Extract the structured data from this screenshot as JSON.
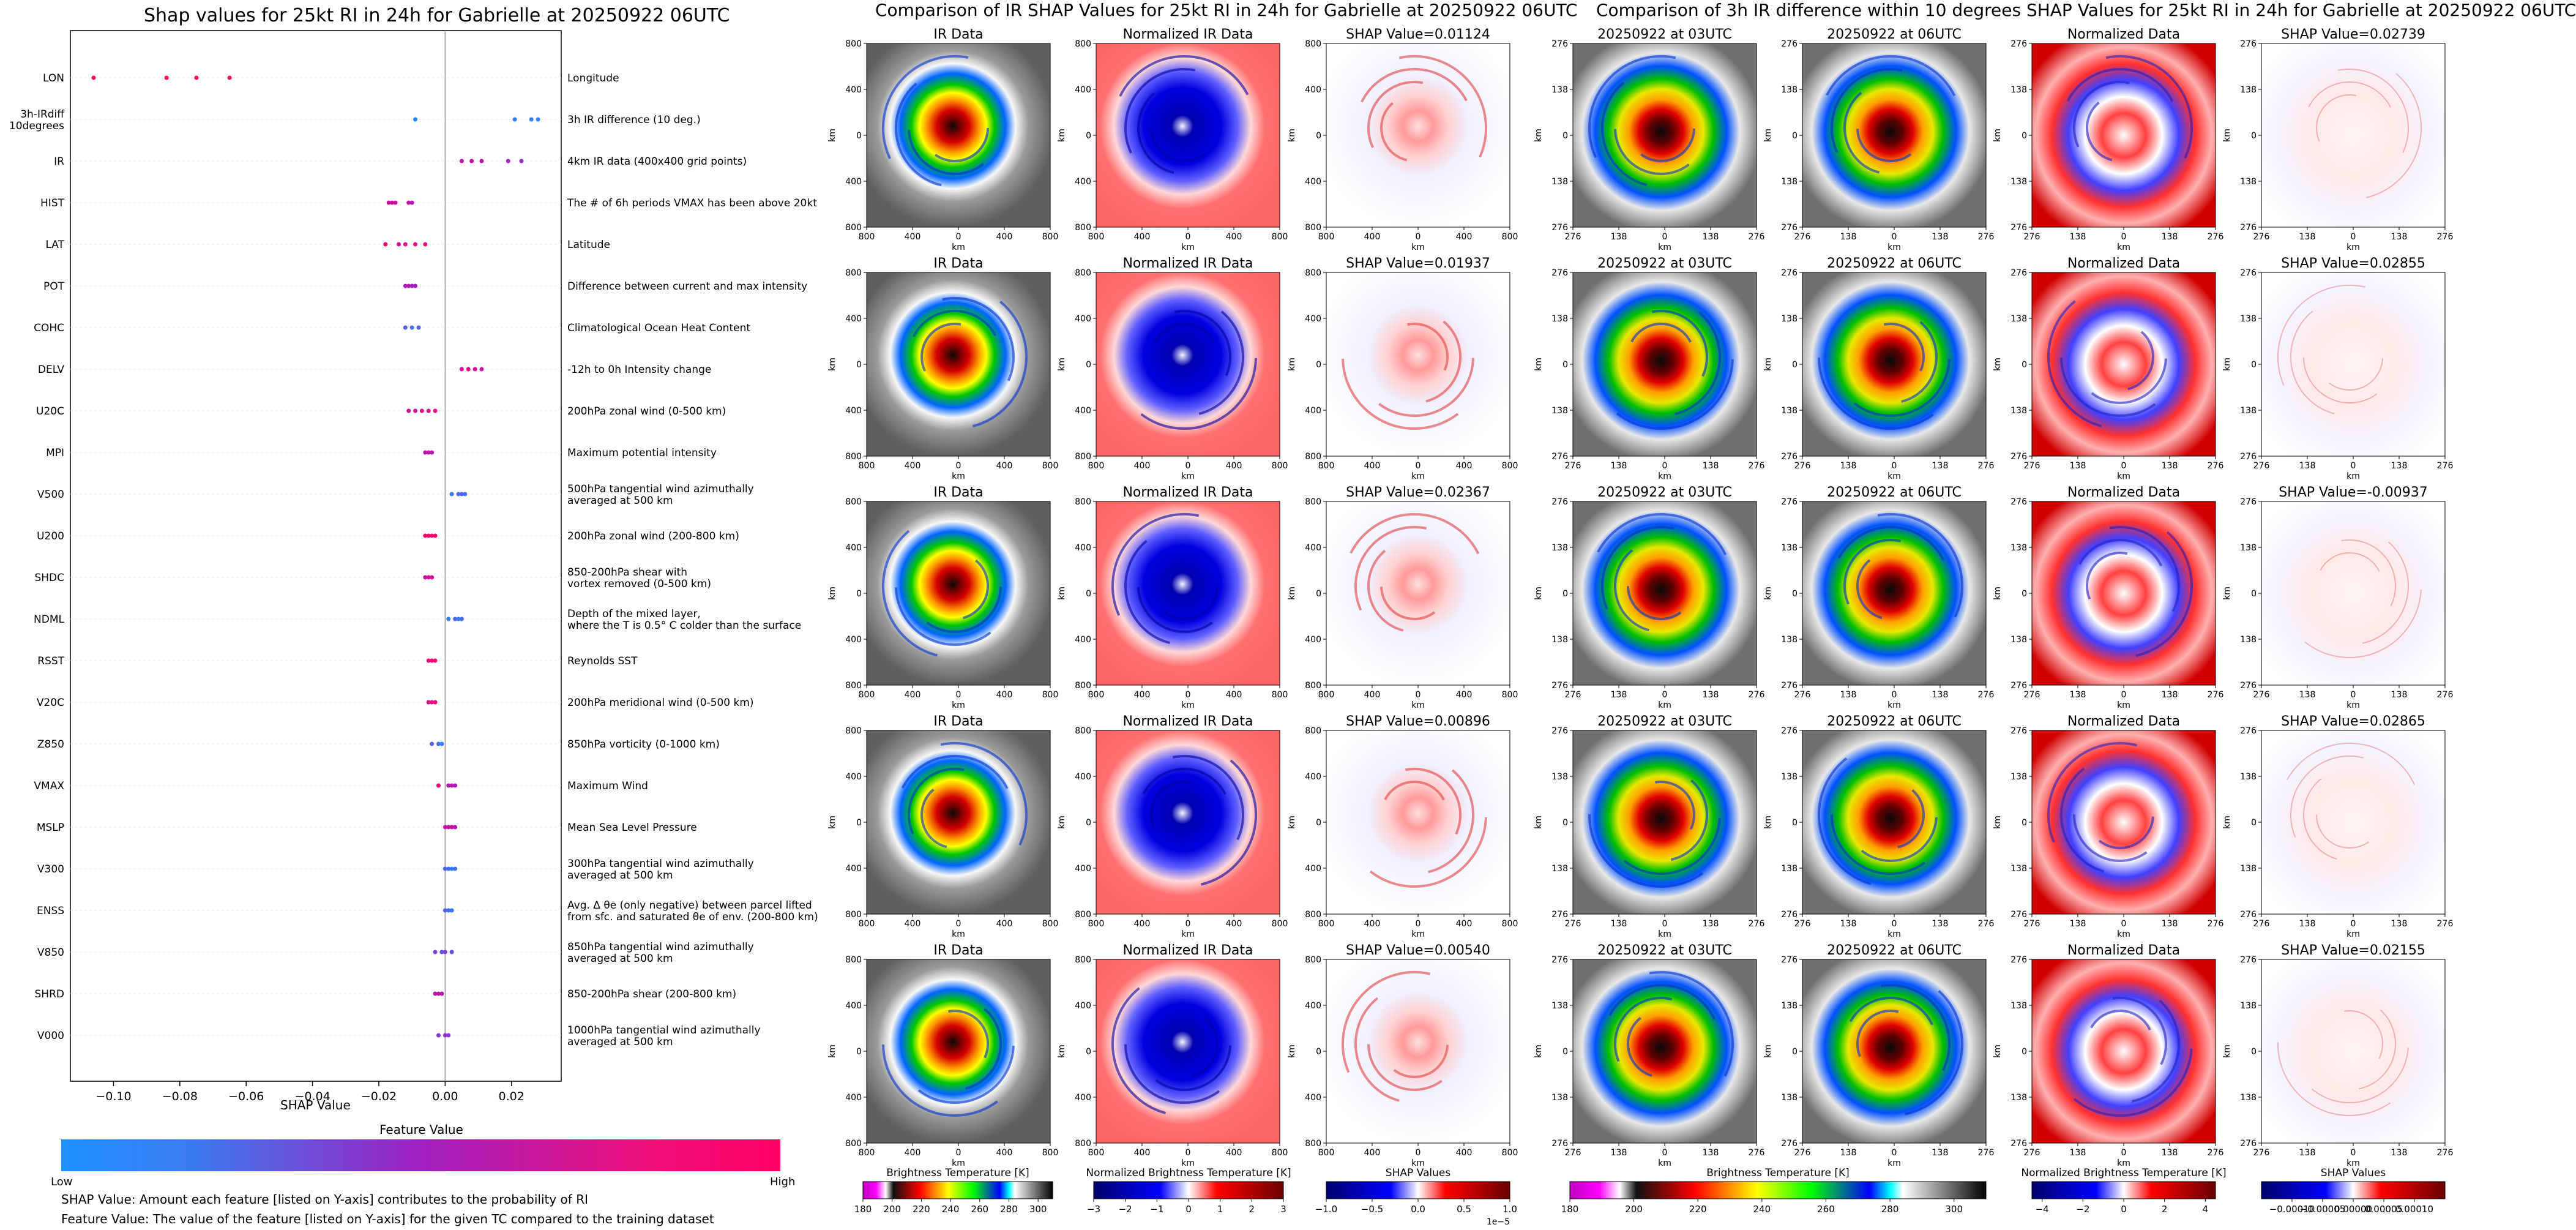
{
  "colors": {
    "low": "#1e90ff",
    "mid": "#a020c0",
    "high": "#ff0066"
  },
  "left": {
    "title": "Shap values for 25kt RI in 24h for Gabrielle at 20250922 06UTC",
    "xlabel": "SHAP Value",
    "colorbar_title": "Feature Value",
    "colorbar_low": "Low",
    "colorbar_high": "High",
    "note1": "SHAP Value: Amount each feature [listed on Y-axis] contributes to the probability of RI",
    "note2": "Feature Value: The value of the feature [listed on Y-axis] for the given TC compared to the training dataset"
  },
  "chart_data": [
    {
      "type": "scatter",
      "title": "Shap values for 25kt RI in 24h for Gabrielle at 20250922 06UTC",
      "xlabel": "SHAP Value",
      "ylabel": "",
      "xlim": [
        -0.113,
        0.035
      ],
      "xticks": [
        "−0.10",
        "−0.08",
        "−0.06",
        "−0.04",
        "−0.02",
        "0.00",
        "0.02"
      ],
      "xtick_values": [
        -0.1,
        -0.08,
        -0.06,
        -0.04,
        -0.02,
        0.0,
        0.02
      ],
      "features": [
        {
          "name": "LON",
          "desc": "Longitude",
          "points": [
            [
              -0.106,
              1.0
            ],
            [
              -0.084,
              1.0
            ],
            [
              -0.075,
              1.0
            ],
            [
              -0.065,
              1.0
            ]
          ]
        },
        {
          "name": "3h-IRdiff\n10degrees",
          "desc": "3h IR difference (10 deg.)",
          "points": [
            [
              -0.009,
              0.05
            ],
            [
              0.021,
              0.1
            ],
            [
              0.026,
              0.1
            ],
            [
              0.028,
              0.05
            ]
          ]
        },
        {
          "name": "IR",
          "desc": "4km IR data (400x400 grid points)",
          "points": [
            [
              0.005,
              0.6
            ],
            [
              0.008,
              0.7
            ],
            [
              0.011,
              0.6
            ],
            [
              0.019,
              0.5
            ],
            [
              0.023,
              0.45
            ]
          ]
        },
        {
          "name": "HIST",
          "desc": "The # of 6h periods VMAX has been above 20kt",
          "points": [
            [
              -0.017,
              0.7
            ],
            [
              -0.016,
              0.75
            ],
            [
              -0.015,
              0.7
            ],
            [
              -0.011,
              0.65
            ],
            [
              -0.01,
              0.6
            ]
          ]
        },
        {
          "name": "LAT",
          "desc": "Latitude",
          "points": [
            [
              -0.018,
              0.9
            ],
            [
              -0.014,
              0.75
            ],
            [
              -0.012,
              0.8
            ],
            [
              -0.009,
              0.85
            ],
            [
              -0.006,
              0.9
            ]
          ]
        },
        {
          "name": "POT",
          "desc": "Difference between current and max intensity",
          "points": [
            [
              -0.012,
              0.55
            ],
            [
              -0.011,
              0.6
            ],
            [
              -0.01,
              0.5
            ],
            [
              -0.009,
              0.5
            ]
          ]
        },
        {
          "name": "COHC",
          "desc": "Climatological Ocean Heat Content",
          "points": [
            [
              -0.012,
              0.2
            ],
            [
              -0.01,
              0.15
            ],
            [
              -0.008,
              0.2
            ]
          ]
        },
        {
          "name": "DELV",
          "desc": "-12h to 0h Intensity change",
          "points": [
            [
              0.005,
              0.75
            ],
            [
              0.007,
              0.8
            ],
            [
              0.009,
              0.75
            ],
            [
              0.011,
              0.7
            ]
          ]
        },
        {
          "name": "U20C",
          "desc": "200hPa zonal wind (0-500 km)",
          "points": [
            [
              -0.011,
              0.7
            ],
            [
              -0.009,
              0.75
            ],
            [
              -0.007,
              0.8
            ],
            [
              -0.005,
              0.85
            ],
            [
              -0.003,
              0.9
            ]
          ]
        },
        {
          "name": "MPI",
          "desc": "Maximum potential intensity",
          "points": [
            [
              -0.006,
              0.65
            ],
            [
              -0.005,
              0.65
            ],
            [
              -0.004,
              0.6
            ]
          ]
        },
        {
          "name": "V500",
          "desc": "500hPa tangential wind azimuthally\naveraged at 500 km",
          "points": [
            [
              0.002,
              0.1
            ],
            [
              0.004,
              0.15
            ],
            [
              0.005,
              0.2
            ],
            [
              0.006,
              0.15
            ]
          ]
        },
        {
          "name": "U200",
          "desc": "200hPa zonal wind (200-800 km)",
          "points": [
            [
              -0.006,
              0.95
            ],
            [
              -0.005,
              0.95
            ],
            [
              -0.004,
              0.9
            ],
            [
              -0.003,
              0.95
            ]
          ]
        },
        {
          "name": "SHDC",
          "desc": "850-200hPa shear with\nvortex removed (0-500 km)",
          "points": [
            [
              -0.006,
              0.7
            ],
            [
              -0.005,
              0.75
            ],
            [
              -0.004,
              0.7
            ]
          ]
        },
        {
          "name": "NDML",
          "desc": "Depth of the mixed layer,\nwhere the T is 0.5° C colder than the surface",
          "points": [
            [
              0.001,
              0.1
            ],
            [
              0.003,
              0.15
            ],
            [
              0.004,
              0.1
            ],
            [
              0.005,
              0.15
            ]
          ]
        },
        {
          "name": "RSST",
          "desc": "Reynolds SST",
          "points": [
            [
              -0.005,
              0.95
            ],
            [
              -0.004,
              0.9
            ],
            [
              -0.003,
              0.95
            ]
          ]
        },
        {
          "name": "V20C",
          "desc": "200hPa meridional wind (0-500 km)",
          "points": [
            [
              -0.005,
              0.8
            ],
            [
              -0.004,
              0.85
            ],
            [
              -0.003,
              0.9
            ]
          ]
        },
        {
          "name": "Z850",
          "desc": "850hPa vorticity (0-1000 km)",
          "points": [
            [
              -0.004,
              0.2
            ],
            [
              -0.002,
              0.15
            ],
            [
              -0.001,
              0.1
            ]
          ]
        },
        {
          "name": "VMAX",
          "desc": "Maximum Wind",
          "points": [
            [
              -0.002,
              0.95
            ],
            [
              0.001,
              0.6
            ],
            [
              0.002,
              0.6
            ],
            [
              0.003,
              0.55
            ]
          ]
        },
        {
          "name": "MSLP",
          "desc": "Mean Sea Level Pressure",
          "points": [
            [
              0.0,
              0.7
            ],
            [
              0.001,
              0.65
            ],
            [
              0.002,
              0.7
            ],
            [
              0.003,
              0.6
            ]
          ]
        },
        {
          "name": "V300",
          "desc": "300hPa tangential wind azimuthally\naveraged at 500 km",
          "points": [
            [
              0.0,
              0.2
            ],
            [
              0.001,
              0.15
            ],
            [
              0.002,
              0.1
            ],
            [
              0.003,
              0.15
            ]
          ]
        },
        {
          "name": "ENSS",
          "desc": "Avg. Δ θe (only negative) between parcel lifted\nfrom sfc. and saturated θe of env. (200-800 km)",
          "points": [
            [
              0.0,
              0.2
            ],
            [
              0.001,
              0.15
            ],
            [
              0.002,
              0.1
            ]
          ]
        },
        {
          "name": "V850",
          "desc": "850hPa tangential wind azimuthally\naveraged at 500 km",
          "points": [
            [
              -0.003,
              0.35
            ],
            [
              -0.001,
              0.3
            ],
            [
              0.0,
              0.35
            ],
            [
              0.002,
              0.3
            ]
          ]
        },
        {
          "name": "SHRD",
          "desc": "850-200hPa shear (200-800 km)",
          "points": [
            [
              -0.003,
              0.6
            ],
            [
              -0.002,
              0.65
            ],
            [
              -0.001,
              0.6
            ]
          ]
        },
        {
          "name": "V000",
          "desc": "1000hPa tangential wind azimuthally\naveraged at 500 km",
          "points": [
            [
              -0.002,
              0.4
            ],
            [
              0.0,
              0.45
            ],
            [
              0.001,
              0.4
            ]
          ]
        }
      ]
    },
    {
      "type": "heatmap",
      "title": "Comparison of IR SHAP Values for 25kt RI in 24h for Gabrielle at 20250922 06UTC",
      "column_titles": [
        "IR Data",
        "Normalized IR Data"
      ],
      "shap_titles": [
        "SHAP Value=0.01124",
        "SHAP Value=0.01937",
        "SHAP Value=0.02367",
        "SHAP Value=0.00896",
        "SHAP Value=0.00540"
      ],
      "shap_values": [
        0.01124,
        0.01937,
        0.02367,
        0.00896,
        0.0054
      ],
      "axis_label": "km",
      "ticks": [
        "800",
        "400",
        "0",
        "400",
        "800"
      ],
      "colorbars": [
        {
          "title": "Brightness Temperature [K]",
          "ticks": [
            "180",
            "200",
            "220",
            "240",
            "260",
            "280",
            "300"
          ],
          "range": [
            180,
            310
          ]
        },
        {
          "title": "Normalized Brightness Temperature [K]",
          "ticks": [
            "−3",
            "−2",
            "−1",
            "0",
            "1",
            "2",
            "3"
          ],
          "range": [
            -3,
            3
          ]
        },
        {
          "title": "SHAP Values",
          "ticks": [
            "−1.0",
            "−0.5",
            "0.0",
            "0.5",
            "1.0"
          ],
          "range": [
            -1.0,
            1.0
          ],
          "scale": "1e−5"
        }
      ]
    },
    {
      "type": "heatmap",
      "title": "Comparison of 3h IR difference within 10 degrees SHAP Values for 25kt RI in 24h for Gabrielle at 20250922 06UTC",
      "column_titles": [
        "20250922 at 03UTC",
        "20250922 at 06UTC",
        "Normalized Data"
      ],
      "shap_titles": [
        "SHAP Value=0.02739",
        "SHAP Value=0.02855",
        "SHAP Value=-0.00937",
        "SHAP Value=0.02865",
        "SHAP Value=0.02155"
      ],
      "shap_values": [
        0.02739,
        0.02855,
        -0.00937,
        0.02865,
        0.02155
      ],
      "axis_label": "km",
      "ticks": [
        "276",
        "138",
        "0",
        "138",
        "276"
      ],
      "colorbars": [
        {
          "title": "Brightness Temperature [K]",
          "ticks": [
            "180",
            "200",
            "220",
            "240",
            "260",
            "280",
            "300"
          ],
          "range": [
            180,
            310
          ]
        },
        {
          "title": "Normalized Brightness Temperature [K]",
          "ticks": [
            "−4",
            "−2",
            "0",
            "2",
            "4"
          ],
          "range": [
            -4.5,
            4.5
          ]
        },
        {
          "title": "SHAP Values",
          "ticks": [
            "−0.00010",
            "−0.00005",
            "0.00000",
            "0.00005",
            "0.00010"
          ],
          "range": [
            -0.00015,
            0.00015
          ]
        }
      ]
    }
  ]
}
